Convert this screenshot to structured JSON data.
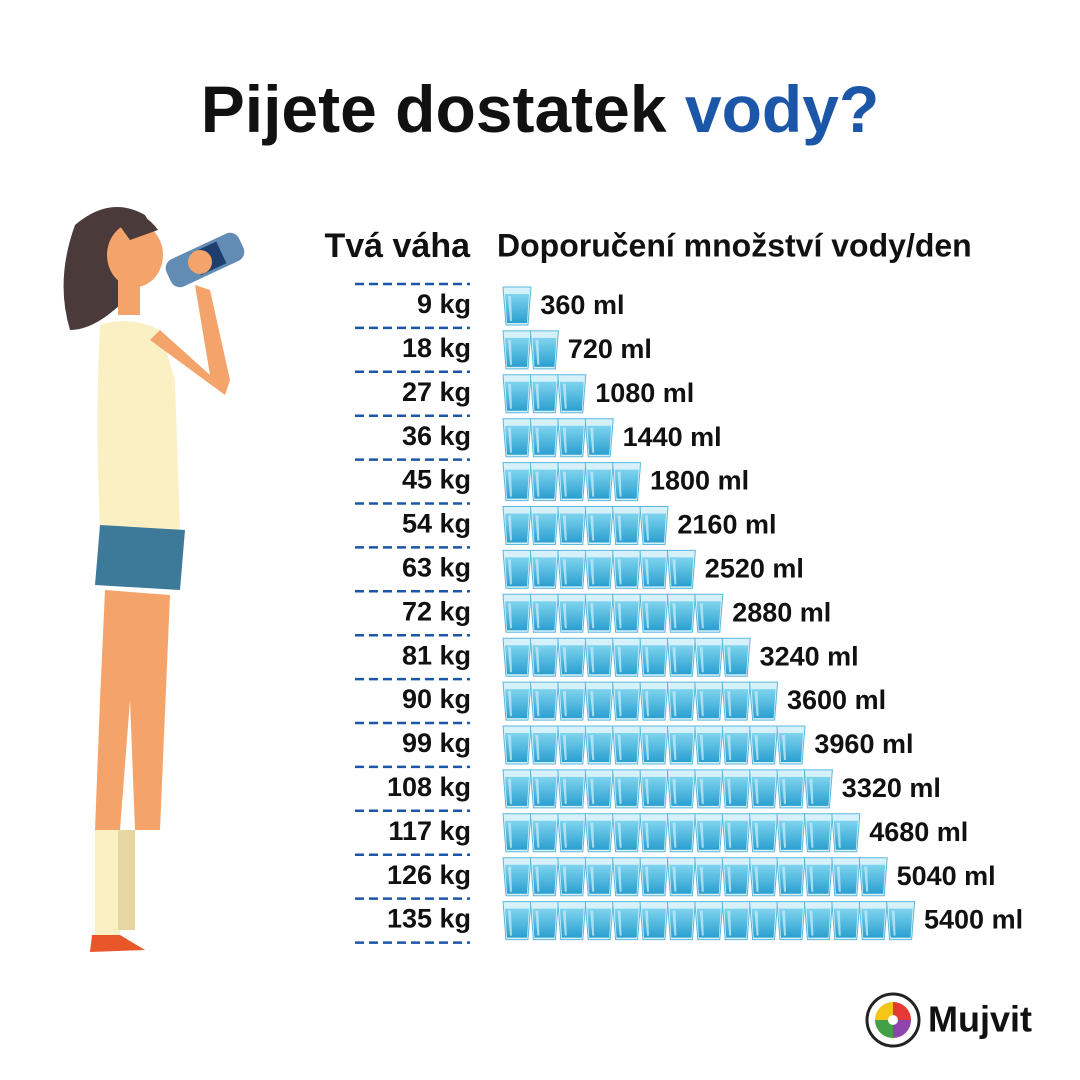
{
  "title": {
    "text": "Pijete dostatek ",
    "highlight": "vody?"
  },
  "headers": {
    "weight": "Tvá váha",
    "amount": "Doporučení množství vody/den"
  },
  "rows": [
    {
      "weight": "9 kg",
      "amount": "360 ml"
    },
    {
      "weight": "18 kg",
      "amount": "720 ml"
    },
    {
      "weight": "27 kg",
      "amount": "1080 ml"
    },
    {
      "weight": "36 kg",
      "amount": "1440 ml"
    },
    {
      "weight": "45 kg",
      "amount": "1800 ml"
    },
    {
      "weight": "54 kg",
      "amount": "2160 ml"
    },
    {
      "weight": "63 kg",
      "amount": "2520 ml"
    },
    {
      "weight": "72 kg",
      "amount": "2880 ml"
    },
    {
      "weight": "81 kg",
      "amount": "3240 ml"
    },
    {
      "weight": "90 kg",
      "amount": "3600 ml"
    },
    {
      "weight": "99 kg",
      "amount": "3960 ml"
    },
    {
      "weight": "108 kg",
      "amount": "3320 ml"
    },
    {
      "weight": "117 kg",
      "amount": "4680 ml"
    },
    {
      "weight": "126 kg",
      "amount": "5040 ml"
    },
    {
      "weight": "135 kg",
      "amount": "5400 ml"
    }
  ],
  "logo": "Mujvit"
}
